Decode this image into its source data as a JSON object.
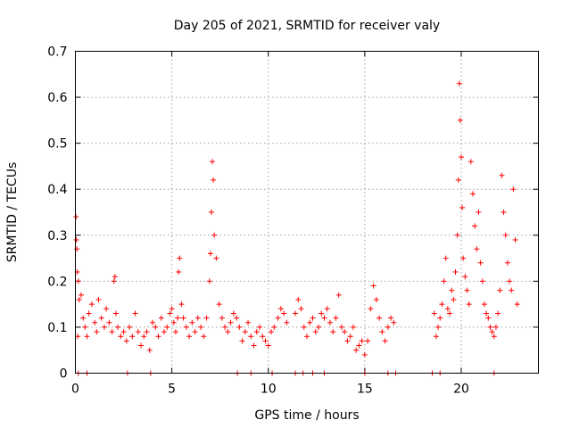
{
  "chart_data": {
    "type": "scatter",
    "title": "Day 205 of 2021, SRMTID for receiver valy",
    "xlabel": "GPS time / hours",
    "ylabel": "SRMTID / TECUs",
    "xlim": [
      0,
      24
    ],
    "ylim": [
      0,
      0.7
    ],
    "xticks": [
      0,
      5,
      10,
      15,
      20
    ],
    "xtick_labels": [
      "0",
      "5",
      "10",
      "15",
      "20"
    ],
    "yticks": [
      0,
      0.1,
      0.2,
      0.3,
      0.4,
      0.5,
      0.6,
      0.7
    ],
    "ytick_labels": [
      "0",
      "0.1",
      "0.2",
      "0.3",
      "0.4",
      "0.5",
      "0.6",
      "0.7"
    ],
    "grid": true,
    "marker": "+",
    "series_color": "#ff0000",
    "series": [
      {
        "name": "SRMTID",
        "x": [
          0.03,
          0.05,
          0.08,
          0.1,
          0.12,
          0.15,
          0.2,
          0.3,
          0.4,
          0.5,
          0.6,
          0.7,
          0.85,
          1.0,
          1.1,
          1.2,
          1.35,
          1.5,
          1.6,
          1.75,
          1.9,
          2.0,
          2.05,
          2.1,
          2.2,
          2.35,
          2.5,
          2.65,
          2.8,
          2.95,
          3.1,
          3.25,
          3.4,
          3.55,
          3.7,
          3.85,
          4.0,
          4.15,
          4.3,
          4.45,
          4.6,
          4.75,
          4.9,
          5.0,
          5.1,
          5.2,
          5.3,
          5.35,
          5.4,
          5.5,
          5.6,
          5.75,
          5.9,
          6.05,
          6.2,
          6.35,
          6.5,
          6.65,
          6.8,
          6.95,
          7.0,
          7.05,
          7.1,
          7.15,
          7.2,
          7.3,
          7.45,
          7.6,
          7.75,
          7.9,
          8.05,
          8.2,
          8.35,
          8.5,
          8.65,
          8.8,
          8.95,
          9.1,
          9.25,
          9.4,
          9.55,
          9.7,
          9.85,
          10.0,
          10.15,
          10.3,
          10.5,
          10.65,
          10.8,
          10.95,
          11.4,
          11.55,
          11.7,
          11.85,
          12.0,
          12.15,
          12.3,
          12.45,
          12.6,
          12.75,
          12.9,
          13.05,
          13.2,
          13.35,
          13.5,
          13.65,
          13.8,
          13.95,
          14.1,
          14.25,
          14.4,
          14.55,
          14.7,
          14.85,
          15.0,
          15.15,
          15.3,
          15.45,
          15.6,
          15.75,
          15.9,
          16.05,
          16.2,
          16.35,
          16.5,
          18.6,
          18.7,
          18.8,
          18.9,
          19.0,
          19.1,
          19.2,
          19.3,
          19.4,
          19.5,
          19.6,
          19.7,
          19.8,
          19.85,
          19.9,
          19.95,
          20.0,
          20.05,
          20.1,
          20.2,
          20.3,
          20.4,
          20.5,
          20.6,
          20.7,
          20.8,
          20.9,
          21.0,
          21.1,
          21.2,
          21.3,
          21.4,
          21.5,
          21.6,
          21.7,
          21.8,
          21.9,
          22.0,
          22.1,
          22.2,
          22.3,
          22.4,
          22.5,
          22.6,
          22.7,
          22.8,
          22.9,
          0.15,
          0.6,
          2.7,
          3.9,
          8.4,
          9.1,
          10.2,
          11.4,
          11.8,
          12.3,
          12.9,
          15.0,
          16.2,
          16.6,
          18.5,
          18.9,
          21.7
        ],
        "y": [
          0.34,
          0.29,
          0.27,
          0.22,
          0.08,
          0.2,
          0.16,
          0.17,
          0.12,
          0.1,
          0.08,
          0.13,
          0.15,
          0.11,
          0.09,
          0.16,
          0.12,
          0.1,
          0.14,
          0.11,
          0.09,
          0.2,
          0.21,
          0.13,
          0.1,
          0.08,
          0.09,
          0.07,
          0.1,
          0.08,
          0.13,
          0.09,
          0.06,
          0.08,
          0.09,
          0.05,
          0.11,
          0.1,
          0.08,
          0.12,
          0.09,
          0.1,
          0.13,
          0.14,
          0.11,
          0.09,
          0.12,
          0.22,
          0.25,
          0.15,
          0.12,
          0.1,
          0.08,
          0.11,
          0.09,
          0.12,
          0.1,
          0.08,
          0.12,
          0.2,
          0.26,
          0.35,
          0.46,
          0.42,
          0.3,
          0.25,
          0.15,
          0.12,
          0.1,
          0.09,
          0.11,
          0.13,
          0.12,
          0.1,
          0.07,
          0.09,
          0.11,
          0.08,
          0.06,
          0.09,
          0.1,
          0.08,
          0.07,
          0.06,
          0.09,
          0.1,
          0.12,
          0.14,
          0.13,
          0.11,
          0.13,
          0.16,
          0.14,
          0.1,
          0.08,
          0.11,
          0.12,
          0.09,
          0.1,
          0.13,
          0.12,
          0.14,
          0.11,
          0.09,
          0.12,
          0.17,
          0.1,
          0.09,
          0.07,
          0.08,
          0.1,
          0.05,
          0.06,
          0.07,
          0.04,
          0.07,
          0.14,
          0.19,
          0.16,
          0.12,
          0.09,
          0.07,
          0.1,
          0.12,
          0.11,
          0.13,
          0.08,
          0.1,
          0.12,
          0.15,
          0.2,
          0.25,
          0.14,
          0.13,
          0.18,
          0.16,
          0.22,
          0.3,
          0.42,
          0.63,
          0.55,
          0.47,
          0.36,
          0.25,
          0.21,
          0.18,
          0.15,
          0.46,
          0.39,
          0.32,
          0.27,
          0.35,
          0.24,
          0.2,
          0.15,
          0.13,
          0.12,
          0.1,
          0.09,
          0.08,
          0.1,
          0.13,
          0.18,
          0.43,
          0.35,
          0.3,
          0.24,
          0.2,
          0.18,
          0.4,
          0.29,
          0.15,
          0.0,
          0.0,
          0.0,
          0.0,
          0.0,
          0.0,
          0.0,
          0.0,
          0.0,
          0.0,
          0.0,
          0.0,
          0.0,
          0.0,
          0.0,
          0.0,
          0.0
        ]
      }
    ]
  }
}
